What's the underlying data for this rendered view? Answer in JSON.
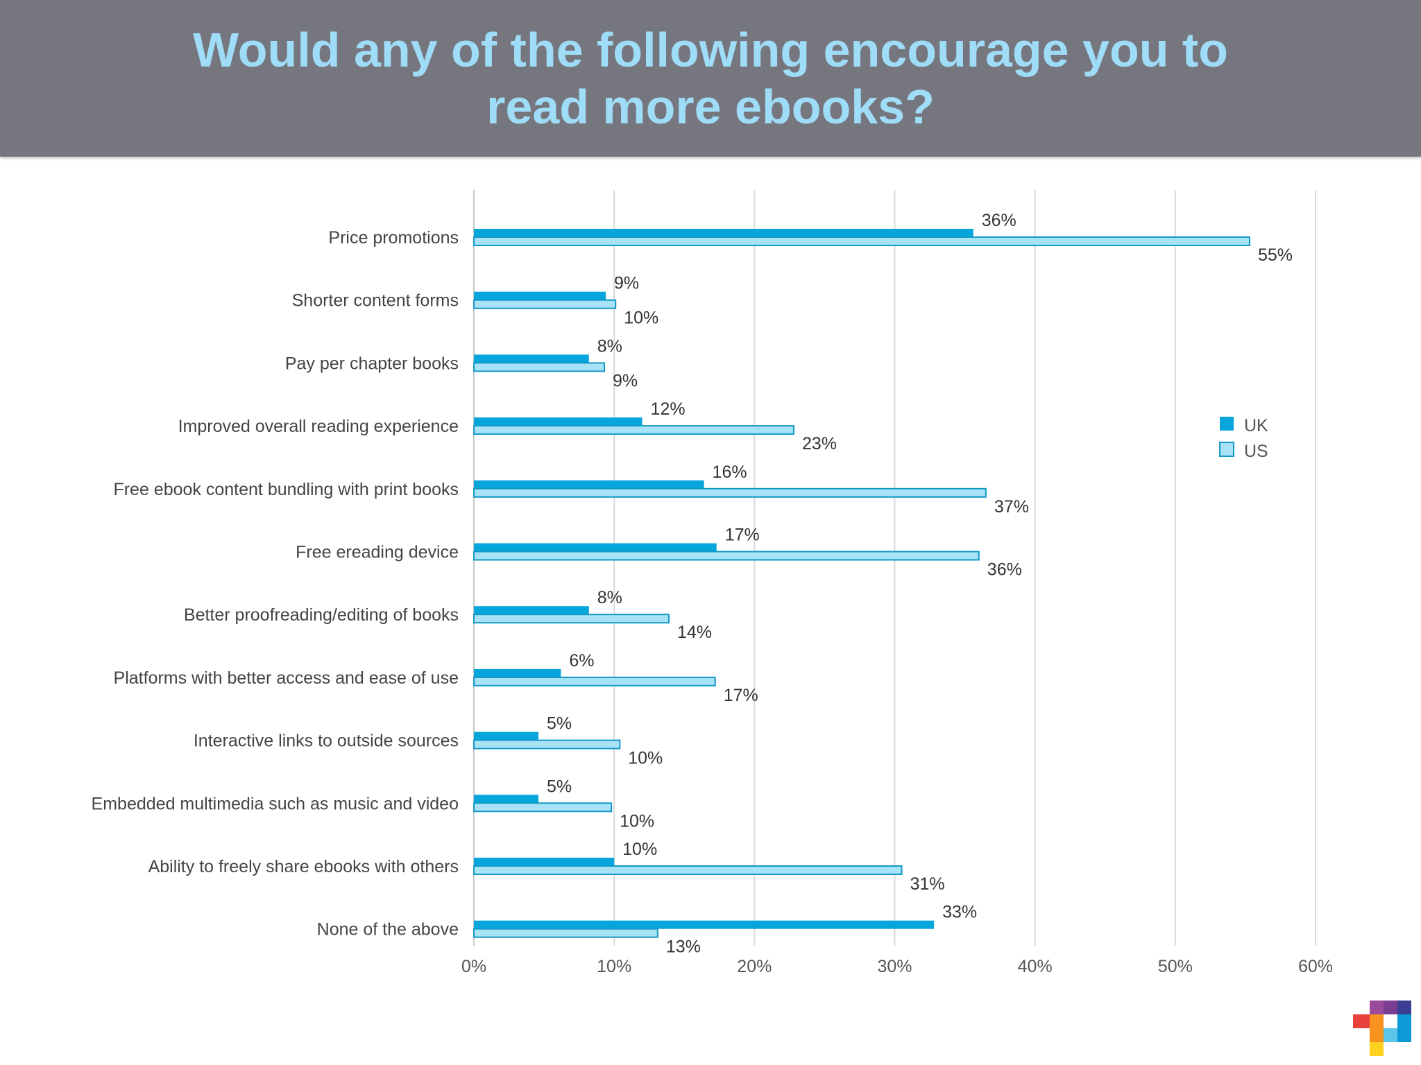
{
  "chart_data": {
    "type": "bar",
    "orientation": "horizontal",
    "title": "Would any of the following encourage you to read more ebooks?",
    "categories": [
      "Price promotions",
      "Shorter content forms",
      "Pay per chapter books",
      "Improved overall reading experience",
      "Free ebook content bundling with print books",
      "Free ereading device",
      "Better proofreading/editing of books",
      "Platforms with better access and ease of use",
      "Interactive links to outside sources",
      "Embedded multimedia such as music and video",
      "Ability to freely share ebooks with others",
      "None of the above"
    ],
    "series": [
      {
        "name": "UK",
        "color": "#06a6dd",
        "values": [
          35.6,
          9.4,
          8.2,
          12.0,
          16.4,
          17.3,
          8.2,
          6.2,
          4.6,
          4.6,
          10.0,
          32.8
        ],
        "labels": [
          "36%",
          "9%",
          "8%",
          "12%",
          "16%",
          "17%",
          "8%",
          "6%",
          "5%",
          "5%",
          "10%",
          "33%"
        ]
      },
      {
        "name": "US",
        "color": "#a7e2f7",
        "stroke": "#1399c6",
        "values": [
          55.3,
          10.1,
          9.3,
          22.8,
          36.5,
          36.0,
          13.9,
          17.2,
          10.4,
          9.8,
          30.5,
          13.1
        ],
        "labels": [
          "55%",
          "10%",
          "9%",
          "23%",
          "37%",
          "36%",
          "14%",
          "17%",
          "10%",
          "10%",
          "31%",
          "13%"
        ]
      }
    ],
    "xlim": [
      0,
      60
    ],
    "xticks": [
      0,
      10,
      20,
      30,
      40,
      50,
      60
    ],
    "xtick_labels": [
      "0%",
      "10%",
      "20%",
      "30%",
      "40%",
      "50%",
      "60%"
    ],
    "grid": true,
    "legend_position": "right"
  },
  "logo": {
    "name": "logo-icon",
    "colors": [
      "#e8403a",
      "#f7931e",
      "#9b4a9c",
      "#3b3f94",
      "#0b9ad6",
      "#5bc6e8",
      "#ffd21f",
      "#2b7fc4"
    ]
  }
}
